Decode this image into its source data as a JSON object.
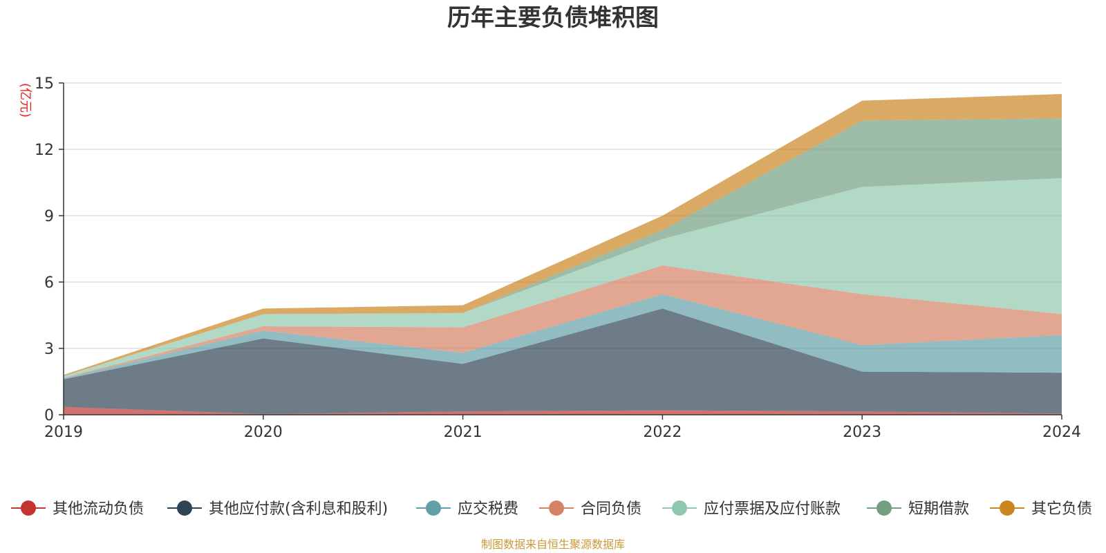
{
  "chart_data": {
    "type": "area",
    "stacked": true,
    "title": "历年主要负债堆积图",
    "ylabel": "(亿元)",
    "xlabel": "",
    "categories": [
      "2019",
      "2020",
      "2021",
      "2022",
      "2023",
      "2024"
    ],
    "ylim": [
      0,
      15
    ],
    "yticks": [
      "0",
      "3",
      "6",
      "9",
      "12",
      "15"
    ],
    "grid": true,
    "legend_position": "bottom",
    "series": [
      {
        "name": "其他流动负债",
        "color": "#c23531",
        "values": [
          0.35,
          0.03,
          0.15,
          0.2,
          0.15,
          0.05
        ]
      },
      {
        "name": "其他应付款(含利息和股利)",
        "color": "#2f4554",
        "values": [
          1.25,
          3.42,
          2.15,
          4.6,
          1.8,
          1.85
        ]
      },
      {
        "name": "应交税费",
        "color": "#61a0a8",
        "values": [
          0.05,
          0.35,
          0.5,
          0.65,
          1.2,
          1.7
        ]
      },
      {
        "name": "合同负债",
        "color": "#d48265",
        "values": [
          0.02,
          0.2,
          1.15,
          1.3,
          2.3,
          0.95
        ]
      },
      {
        "name": "应付票据及应付账款",
        "color": "#91c7ae",
        "values": [
          0.08,
          0.55,
          0.65,
          1.2,
          4.85,
          6.15
        ]
      },
      {
        "name": "短期借款",
        "color": "#749f83",
        "values": [
          0.0,
          0.0,
          0.0,
          0.4,
          3.0,
          2.7
        ]
      },
      {
        "name": "其它负债",
        "color": "#ca8622",
        "values": [
          0.05,
          0.25,
          0.35,
          0.65,
          0.9,
          1.1
        ]
      }
    ]
  },
  "source_note": "制图数据来自恒生聚源数据库",
  "colors": {
    "title": "#333333",
    "axis": "#333333",
    "grid": "#cccccc",
    "unit": "#e6231f",
    "source": "#c79a3a"
  }
}
